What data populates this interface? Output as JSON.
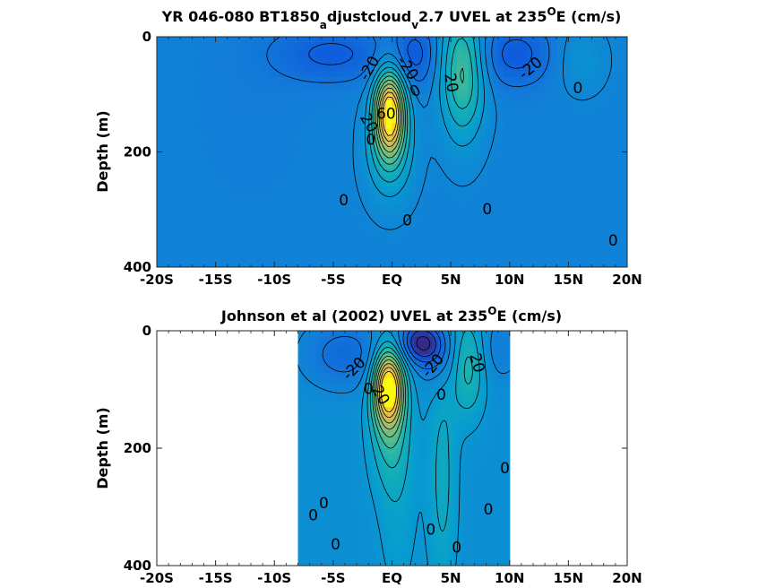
{
  "chart_data": [
    {
      "type": "heatmap",
      "title_parts": [
        "YR 046-080 BT1850",
        "a",
        "djustcloud",
        "v",
        "2.7 UVEL at 235",
        "O",
        "E (cm/s)"
      ],
      "ylabel": "Depth (m)",
      "xlim": [
        -20,
        20
      ],
      "ylim": [
        0,
        400
      ],
      "y_reversed": true,
      "x_ticks": [
        -20,
        -15,
        -10,
        -5,
        0,
        5,
        10,
        15,
        20
      ],
      "x_tick_labels": [
        "-20S",
        "-15S",
        "-10S",
        "-5S",
        "EQ",
        "5N",
        "10N",
        "15N",
        "20N"
      ],
      "y_ticks": [
        0,
        200,
        400
      ],
      "y_tick_labels": [
        "0",
        "200",
        "400"
      ],
      "data_extent_x": [
        -20,
        20
      ],
      "colorscale": "parula",
      "clim": [
        -40,
        100
      ],
      "background": -2,
      "features": [
        {
          "kind": "core",
          "x": -0.2,
          "y": 130,
          "sx": 0.9,
          "sy": 50,
          "amp": 100
        },
        {
          "kind": "core",
          "x": -0.2,
          "y": 200,
          "sx": 1.4,
          "sy": 60,
          "amp": 25
        },
        {
          "kind": "core",
          "x": 6,
          "y": 60,
          "sx": 1.3,
          "sy": 80,
          "amp": 45
        },
        {
          "kind": "core",
          "x": 16,
          "y": 40,
          "sx": 1.5,
          "sy": 40,
          "amp": 10
        },
        {
          "kind": "core",
          "x": -5,
          "y": 30,
          "sx": 3.5,
          "sy": 35,
          "amp": -20
        },
        {
          "kind": "core",
          "x": 2,
          "y": 30,
          "sx": 1.2,
          "sy": 40,
          "amp": -20
        },
        {
          "kind": "core",
          "x": 10.5,
          "y": 30,
          "sx": 2.3,
          "sy": 40,
          "amp": -22
        },
        {
          "kind": "core",
          "x": -12,
          "y": 100,
          "sx": 4,
          "sy": 150,
          "amp": -3
        }
      ],
      "contour_labels": [
        {
          "x": -1.9,
          "y": 55,
          "text": "-20",
          "rot": -60
        },
        {
          "x": 1.3,
          "y": 55,
          "text": "-20",
          "rot": 55
        },
        {
          "x": 11.8,
          "y": 55,
          "text": "-20",
          "rot": -40
        },
        {
          "x": 5.0,
          "y": 80,
          "text": "20",
          "rot": 80
        },
        {
          "x": 2.0,
          "y": 95,
          "text": "0",
          "rot": -30
        },
        {
          "x": 15.8,
          "y": 90,
          "text": "0",
          "rot": 0
        },
        {
          "x": -2.0,
          "y": 150,
          "text": "20",
          "rot": 60
        },
        {
          "x": -0.5,
          "y": 135,
          "text": "60",
          "rot": 0
        },
        {
          "x": -1.8,
          "y": 180,
          "text": "0",
          "rot": 0
        },
        {
          "x": -4.1,
          "y": 285,
          "text": "0",
          "rot": 0
        },
        {
          "x": 1.3,
          "y": 320,
          "text": "0",
          "rot": 0
        },
        {
          "x": 8.1,
          "y": 300,
          "text": "0",
          "rot": 0
        },
        {
          "x": 18.8,
          "y": 355,
          "text": "0",
          "rot": 0
        }
      ]
    },
    {
      "type": "heatmap",
      "title_parts": [
        "Johnson et al (2002) UVEL at 235",
        "O",
        "E (cm/s)"
      ],
      "ylabel": "Depth (m)",
      "xlim": [
        -20,
        20
      ],
      "ylim": [
        0,
        400
      ],
      "y_reversed": true,
      "x_ticks": [
        -20,
        -15,
        -10,
        -5,
        0,
        5,
        10,
        15,
        20
      ],
      "x_tick_labels": [
        "-20S",
        "-15S",
        "-10S",
        "-5S",
        "EQ",
        "5N",
        "10N",
        "15N",
        "20N"
      ],
      "y_ticks": [
        0,
        200,
        400
      ],
      "y_tick_labels": [
        "0",
        "200",
        "400"
      ],
      "data_extent_x": [
        -8,
        10
      ],
      "colorscale": "parula",
      "clim": [
        -40,
        100
      ],
      "background": 5,
      "features": [
        {
          "kind": "core",
          "x": -0.3,
          "y": 95,
          "sx": 0.9,
          "sy": 45,
          "amp": 95
        },
        {
          "kind": "core",
          "x": -0.2,
          "y": 170,
          "sx": 1.2,
          "sy": 70,
          "amp": 25
        },
        {
          "kind": "core",
          "x": 6.5,
          "y": 60,
          "sx": 1.0,
          "sy": 60,
          "amp": 30
        },
        {
          "kind": "core",
          "x": 2.5,
          "y": 20,
          "sx": 1.3,
          "sy": 25,
          "amp": -45
        },
        {
          "kind": "core",
          "x": -4,
          "y": 40,
          "sx": 2.5,
          "sy": 40,
          "amp": -20
        },
        {
          "kind": "core",
          "x": 4,
          "y": 50,
          "sx": 1.2,
          "sy": 40,
          "amp": -15
        },
        {
          "kind": "core",
          "x": 9,
          "y": 30,
          "sx": 1.5,
          "sy": 40,
          "amp": -10
        },
        {
          "kind": "core",
          "x": 4.3,
          "y": 250,
          "sx": 0.9,
          "sy": 150,
          "amp": 18
        },
        {
          "kind": "core",
          "x": 0.5,
          "y": 300,
          "sx": 1.2,
          "sy": 120,
          "amp": 10
        }
      ],
      "contour_labels": [
        {
          "x": -3.2,
          "y": 65,
          "text": "-20",
          "rot": -45
        },
        {
          "x": 3.5,
          "y": 60,
          "text": "-20",
          "rot": -50
        },
        {
          "x": 7.2,
          "y": 55,
          "text": "20",
          "rot": 75
        },
        {
          "x": -2.0,
          "y": 100,
          "text": "0",
          "rot": 0
        },
        {
          "x": -1.0,
          "y": 110,
          "text": "20",
          "rot": 60
        },
        {
          "x": 4.2,
          "y": 110,
          "text": "0",
          "rot": 0
        },
        {
          "x": 9.6,
          "y": 235,
          "text": "0",
          "rot": 0
        },
        {
          "x": -5.8,
          "y": 295,
          "text": "0",
          "rot": 0
        },
        {
          "x": -6.7,
          "y": 315,
          "text": "0",
          "rot": 0
        },
        {
          "x": 8.2,
          "y": 305,
          "text": "0",
          "rot": 0
        },
        {
          "x": 3.3,
          "y": 340,
          "text": "0",
          "rot": 0
        },
        {
          "x": -4.8,
          "y": 365,
          "text": "0",
          "rot": 0
        },
        {
          "x": 5.5,
          "y": 370,
          "text": "0",
          "rot": 0
        }
      ]
    }
  ]
}
